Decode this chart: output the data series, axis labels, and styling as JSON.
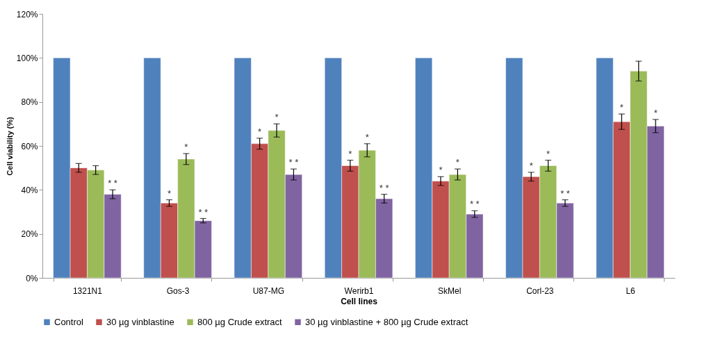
{
  "chart_data": {
    "type": "bar",
    "xlabel": "Cell lines",
    "ylabel": "Cell viability (%)",
    "categories": [
      "1321N1",
      "Gos-3",
      "U87-MG",
      "Werirb1",
      "SkMel",
      "Corl-23",
      "L6"
    ],
    "ylim": [
      0,
      120
    ],
    "yticks": [
      {
        "value": 0,
        "label": "0%"
      },
      {
        "value": 20,
        "label": "20%"
      },
      {
        "value": 40,
        "label": "40%"
      },
      {
        "value": 60,
        "label": "60%"
      },
      {
        "value": 80,
        "label": "80%"
      },
      {
        "value": 100,
        "label": "100%"
      },
      {
        "value": 120,
        "label": "120%"
      }
    ],
    "grid": false,
    "legend": "bottom",
    "series": [
      {
        "name": "Control",
        "color": "#4f81bd",
        "values": [
          100,
          100,
          100,
          100,
          100,
          100,
          100
        ]
      },
      {
        "name": "30 µg vinblastine",
        "color": "#c0504d",
        "values": [
          50,
          34,
          61,
          51,
          44,
          46,
          71
        ],
        "errors": [
          2,
          1.5,
          2.5,
          2.5,
          2,
          2,
          3.5
        ],
        "value_labels": [
          null,
          "*",
          "*",
          "*",
          "*",
          "*",
          "*"
        ]
      },
      {
        "name": "800 µg Crude extract",
        "color": "#9bbb59",
        "values": [
          49,
          54,
          67,
          58,
          47,
          51,
          94
        ],
        "errors": [
          2,
          2.5,
          3,
          3,
          2.5,
          2.5,
          4.5
        ],
        "value_labels": [
          null,
          "*",
          "*",
          "*",
          "*",
          "*",
          null
        ]
      },
      {
        "name": "30 µg vinblastine + 800 µg Crude extract",
        "color": "#8064a2",
        "values": [
          38,
          26,
          47,
          36,
          29,
          34,
          69
        ],
        "errors": [
          2,
          1,
          2.5,
          2,
          1.5,
          1.5,
          3
        ],
        "value_labels": [
          "* *",
          "* *",
          "* *",
          "* *",
          "* *",
          "* *",
          "*"
        ]
      }
    ]
  }
}
